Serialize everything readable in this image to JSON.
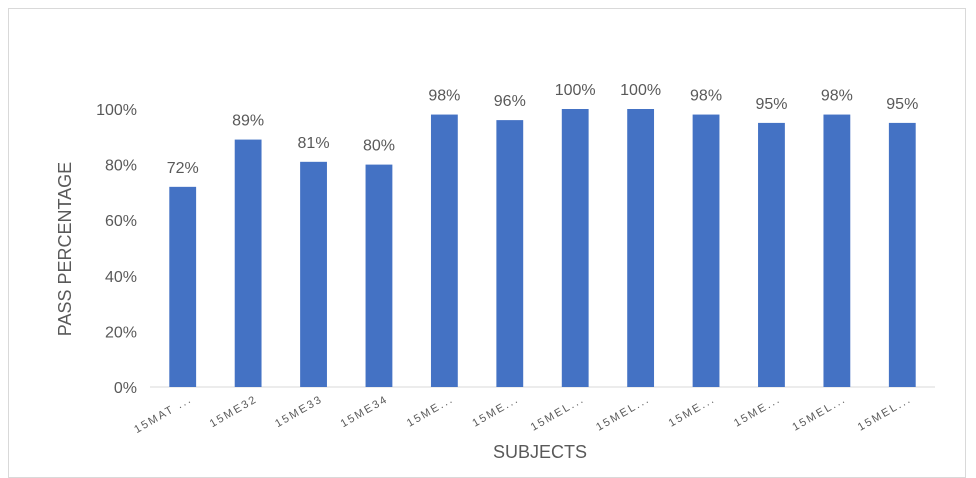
{
  "chart_data": {
    "type": "bar",
    "title": "",
    "xlabel": "SUBJECTS",
    "ylabel": "PASS PERCENTAGE",
    "ylim": [
      0,
      100
    ],
    "yticks": [
      0,
      20,
      40,
      60,
      80,
      100
    ],
    "ytick_labels": [
      "0%",
      "20%",
      "40%",
      "60%",
      "80%",
      "100%"
    ],
    "grid": false,
    "legend": "none",
    "bar_color": "#4472c4",
    "categories": [
      "15MAT ...",
      "15ME32",
      "15ME33",
      "15ME34",
      "15ME...",
      "15ME...",
      "15MEL...",
      "15MEL...",
      "15ME...",
      "15ME...",
      "15MEL...",
      "15MEL..."
    ],
    "values": [
      72,
      89,
      81,
      80,
      98,
      96,
      100,
      100,
      98,
      95,
      98,
      95
    ],
    "data_labels": [
      "72%",
      "89%",
      "81%",
      "80%",
      "98%",
      "96%",
      "100%",
      "100%",
      "98%",
      "95%",
      "98%",
      "95%"
    ]
  }
}
